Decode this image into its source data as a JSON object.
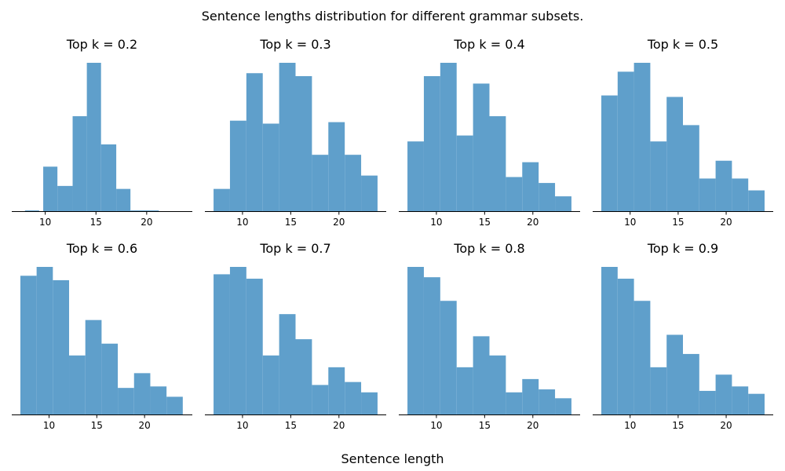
{
  "figure": {
    "suptitle": "Sentence lengths distribution for different grammar subsets.",
    "xlabel": "Sentence length"
  },
  "bar_color": "#5f9fcb",
  "axis_color": "#000000",
  "chart_data": [
    {
      "type": "bar",
      "title": "Top k = 0.2",
      "xlim": [
        6.7,
        24.5
      ],
      "xticks": [
        10,
        15,
        20
      ],
      "ylim": [
        0,
        1
      ],
      "bins": [
        {
          "x0": 8.0,
          "x1": 9.4,
          "h": 0.005
        },
        {
          "x0": 9.8,
          "x1": 11.2,
          "h": 0.3
        },
        {
          "x0": 11.2,
          "x1": 12.7,
          "h": 0.17
        },
        {
          "x0": 12.7,
          "x1": 14.1,
          "h": 0.64
        },
        {
          "x0": 14.1,
          "x1": 15.5,
          "h": 1.0
        },
        {
          "x0": 15.5,
          "x1": 17.0,
          "h": 0.45
        },
        {
          "x0": 17.0,
          "x1": 18.4,
          "h": 0.15
        },
        {
          "x0": 18.4,
          "x1": 21.2,
          "h": 0.005
        }
      ]
    },
    {
      "type": "bar",
      "title": "Top k = 0.3",
      "xlim": [
        6.1,
        24.9
      ],
      "xticks": [
        10,
        15,
        20
      ],
      "ylim": [
        0,
        1
      ],
      "bins": [
        {
          "x0": 7.0,
          "x1": 8.7,
          "h": 0.15
        },
        {
          "x0": 8.7,
          "x1": 10.4,
          "h": 0.61
        },
        {
          "x0": 10.4,
          "x1": 12.1,
          "h": 0.93
        },
        {
          "x0": 12.1,
          "x1": 13.8,
          "h": 0.59
        },
        {
          "x0": 13.8,
          "x1": 15.5,
          "h": 1.0
        },
        {
          "x0": 15.5,
          "x1": 17.2,
          "h": 0.91
        },
        {
          "x0": 17.2,
          "x1": 18.9,
          "h": 0.38
        },
        {
          "x0": 18.9,
          "x1": 20.6,
          "h": 0.6
        },
        {
          "x0": 20.6,
          "x1": 22.3,
          "h": 0.38
        },
        {
          "x0": 22.3,
          "x1": 24.0,
          "h": 0.24
        }
      ]
    },
    {
      "type": "bar",
      "title": "Top k = 0.4",
      "xlim": [
        6.1,
        24.9
      ],
      "xticks": [
        10,
        15,
        20
      ],
      "ylim": [
        0,
        1
      ],
      "bins": [
        {
          "x0": 7.0,
          "x1": 8.7,
          "h": 0.47
        },
        {
          "x0": 8.7,
          "x1": 10.4,
          "h": 0.91
        },
        {
          "x0": 10.4,
          "x1": 12.1,
          "h": 1.0
        },
        {
          "x0": 12.1,
          "x1": 13.8,
          "h": 0.51
        },
        {
          "x0": 13.8,
          "x1": 15.5,
          "h": 0.86
        },
        {
          "x0": 15.5,
          "x1": 17.2,
          "h": 0.64
        },
        {
          "x0": 17.2,
          "x1": 18.9,
          "h": 0.23
        },
        {
          "x0": 18.9,
          "x1": 20.6,
          "h": 0.33
        },
        {
          "x0": 20.6,
          "x1": 22.3,
          "h": 0.19
        },
        {
          "x0": 22.3,
          "x1": 24.0,
          "h": 0.1
        }
      ]
    },
    {
      "type": "bar",
      "title": "Top k = 0.5",
      "xlim": [
        6.1,
        24.9
      ],
      "xticks": [
        10,
        15,
        20
      ],
      "ylim": [
        0,
        1
      ],
      "bins": [
        {
          "x0": 7.0,
          "x1": 8.7,
          "h": 0.78
        },
        {
          "x0": 8.7,
          "x1": 10.4,
          "h": 0.94
        },
        {
          "x0": 10.4,
          "x1": 12.1,
          "h": 1.0
        },
        {
          "x0": 12.1,
          "x1": 13.8,
          "h": 0.47
        },
        {
          "x0": 13.8,
          "x1": 15.5,
          "h": 0.77
        },
        {
          "x0": 15.5,
          "x1": 17.2,
          "h": 0.58
        },
        {
          "x0": 17.2,
          "x1": 18.9,
          "h": 0.22
        },
        {
          "x0": 18.9,
          "x1": 20.6,
          "h": 0.34
        },
        {
          "x0": 20.6,
          "x1": 22.3,
          "h": 0.22
        },
        {
          "x0": 22.3,
          "x1": 24.0,
          "h": 0.14
        }
      ]
    },
    {
      "type": "bar",
      "title": "Top k = 0.6",
      "xlim": [
        6.1,
        25.0
      ],
      "xticks": [
        10,
        15,
        20
      ],
      "ylim": [
        0,
        1
      ],
      "bins": [
        {
          "x0": 7.0,
          "x1": 8.7,
          "h": 0.94
        },
        {
          "x0": 8.7,
          "x1": 10.4,
          "h": 1.0
        },
        {
          "x0": 10.4,
          "x1": 12.1,
          "h": 0.91
        },
        {
          "x0": 12.1,
          "x1": 13.8,
          "h": 0.4
        },
        {
          "x0": 13.8,
          "x1": 15.5,
          "h": 0.64
        },
        {
          "x0": 15.5,
          "x1": 17.2,
          "h": 0.48
        },
        {
          "x0": 17.2,
          "x1": 18.9,
          "h": 0.18
        },
        {
          "x0": 18.9,
          "x1": 20.6,
          "h": 0.28
        },
        {
          "x0": 20.6,
          "x1": 22.3,
          "h": 0.19
        },
        {
          "x0": 22.3,
          "x1": 24.0,
          "h": 0.12
        }
      ]
    },
    {
      "type": "bar",
      "title": "Top k = 0.7",
      "xlim": [
        6.1,
        24.9
      ],
      "xticks": [
        10,
        15,
        20
      ],
      "ylim": [
        0,
        1
      ],
      "bins": [
        {
          "x0": 7.0,
          "x1": 8.7,
          "h": 0.95
        },
        {
          "x0": 8.7,
          "x1": 10.4,
          "h": 1.0
        },
        {
          "x0": 10.4,
          "x1": 12.1,
          "h": 0.92
        },
        {
          "x0": 12.1,
          "x1": 13.8,
          "h": 0.4
        },
        {
          "x0": 13.8,
          "x1": 15.5,
          "h": 0.68
        },
        {
          "x0": 15.5,
          "x1": 17.2,
          "h": 0.51
        },
        {
          "x0": 17.2,
          "x1": 18.9,
          "h": 0.2
        },
        {
          "x0": 18.9,
          "x1": 20.6,
          "h": 0.32
        },
        {
          "x0": 20.6,
          "x1": 22.3,
          "h": 0.22
        },
        {
          "x0": 22.3,
          "x1": 24.0,
          "h": 0.15
        }
      ]
    },
    {
      "type": "bar",
      "title": "Top k = 0.8",
      "xlim": [
        6.1,
        24.9
      ],
      "xticks": [
        10,
        15,
        20
      ],
      "ylim": [
        0,
        1
      ],
      "bins": [
        {
          "x0": 7.0,
          "x1": 8.7,
          "h": 1.0
        },
        {
          "x0": 8.7,
          "x1": 10.4,
          "h": 0.93
        },
        {
          "x0": 10.4,
          "x1": 12.1,
          "h": 0.77
        },
        {
          "x0": 12.1,
          "x1": 13.8,
          "h": 0.32
        },
        {
          "x0": 13.8,
          "x1": 15.5,
          "h": 0.53
        },
        {
          "x0": 15.5,
          "x1": 17.2,
          "h": 0.4
        },
        {
          "x0": 17.2,
          "x1": 18.9,
          "h": 0.15
        },
        {
          "x0": 18.9,
          "x1": 20.6,
          "h": 0.24
        },
        {
          "x0": 20.6,
          "x1": 22.3,
          "h": 0.17
        },
        {
          "x0": 22.3,
          "x1": 24.0,
          "h": 0.11
        }
      ]
    },
    {
      "type": "bar",
      "title": "Top k = 0.9",
      "xlim": [
        6.1,
        24.9
      ],
      "xticks": [
        10,
        15,
        20
      ],
      "ylim": [
        0,
        1
      ],
      "bins": [
        {
          "x0": 7.0,
          "x1": 8.7,
          "h": 1.0
        },
        {
          "x0": 8.7,
          "x1": 10.4,
          "h": 0.92
        },
        {
          "x0": 10.4,
          "x1": 12.1,
          "h": 0.77
        },
        {
          "x0": 12.1,
          "x1": 13.8,
          "h": 0.32
        },
        {
          "x0": 13.8,
          "x1": 15.5,
          "h": 0.54
        },
        {
          "x0": 15.5,
          "x1": 17.2,
          "h": 0.41
        },
        {
          "x0": 17.2,
          "x1": 18.9,
          "h": 0.16
        },
        {
          "x0": 18.9,
          "x1": 20.6,
          "h": 0.27
        },
        {
          "x0": 20.6,
          "x1": 22.3,
          "h": 0.19
        },
        {
          "x0": 22.3,
          "x1": 24.0,
          "h": 0.14
        }
      ]
    }
  ]
}
